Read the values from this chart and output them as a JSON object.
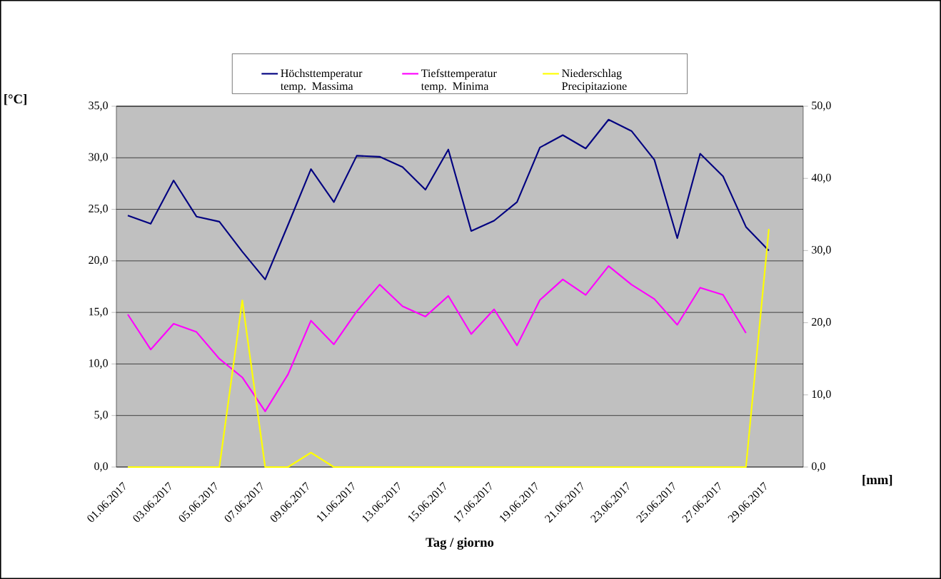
{
  "chart_data": {
    "type": "line",
    "xlabel": "Tag / giorno",
    "ylabel": "[°C]",
    "y2label": "[mm]",
    "categories": [
      "01.06.2017",
      null,
      "03.06.2017",
      null,
      "05.06.2017",
      null,
      "07.06.2017",
      null,
      "09.06.2017",
      null,
      "11.06.2017",
      null,
      "13.06.2017",
      null,
      "15.06.2017",
      null,
      "17.06.2017",
      null,
      "19.06.2017",
      null,
      "21.06.2017",
      null,
      "23.06.2017",
      null,
      "25.06.2017",
      null,
      "27.06.2017",
      null,
      "29.06.2017",
      null
    ],
    "series": [
      {
        "name": "Höchsttemperatur temp. Massima",
        "color": "#000080",
        "values": [
          24.4,
          23.6,
          27.8,
          24.3,
          23.8,
          20.9,
          18.2,
          23.5,
          28.9,
          25.7,
          30.2,
          30.1,
          29.1,
          26.9,
          30.8,
          22.9,
          23.9,
          25.7,
          31.0,
          32.2,
          30.9,
          33.7,
          32.6,
          29.8,
          22.2,
          30.4,
          28.2,
          23.3,
          21.0,
          null
        ]
      },
      {
        "name": "Tiefsttemperatur temp. Minima",
        "color": "#ff00ff",
        "values": [
          14.8,
          11.4,
          13.9,
          13.1,
          10.5,
          8.7,
          5.4,
          9.0,
          14.2,
          11.9,
          15.1,
          17.7,
          15.6,
          14.6,
          16.6,
          12.9,
          15.3,
          11.8,
          16.2,
          18.2,
          16.7,
          19.5,
          17.7,
          16.3,
          13.8,
          17.4,
          16.7,
          13.0,
          null,
          null
        ]
      },
      {
        "name": "Niederschlag Precipitazione",
        "color": "#ffff00",
        "axis": "y2",
        "values": [
          0,
          0,
          0,
          0,
          0,
          23.1,
          0,
          0,
          2.0,
          0,
          0,
          0,
          0,
          0,
          0,
          0,
          0,
          0,
          0,
          0,
          0,
          0,
          0,
          0,
          0,
          0,
          0,
          0,
          33.0,
          null
        ]
      }
    ],
    "ylim": [
      0,
      35
    ],
    "yticks": [
      {
        "value": 0,
        "label": "0,0"
      },
      {
        "value": 5,
        "label": "5,0"
      },
      {
        "value": 10,
        "label": "10,0"
      },
      {
        "value": 15,
        "label": "15,0"
      },
      {
        "value": 20,
        "label": "20,0"
      },
      {
        "value": 25,
        "label": "25,0"
      },
      {
        "value": 30,
        "label": "30,0"
      },
      {
        "value": 35,
        "label": "35,0"
      }
    ],
    "y2lim": [
      0,
      50
    ],
    "y2ticks": [
      {
        "value": 0,
        "label": "0,0"
      },
      {
        "value": 10,
        "label": "10,0"
      },
      {
        "value": 20,
        "label": "20,0"
      },
      {
        "value": 30,
        "label": "30,0"
      },
      {
        "value": 40,
        "label": "40,0"
      },
      {
        "value": 50,
        "label": "50,0"
      }
    ],
    "grid": "y",
    "legend": "top",
    "marker": "none",
    "line_style": "solid"
  }
}
